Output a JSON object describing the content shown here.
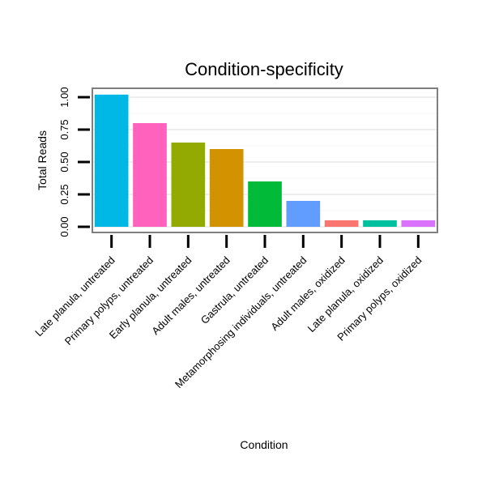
{
  "chart_data": {
    "type": "bar",
    "title": "Condition-specificity",
    "xlabel": "Condition",
    "ylabel": "Total Reads",
    "ylim": [
      0,
      1.05
    ],
    "yticks": [
      "0.00",
      "0.25",
      "0.50",
      "0.75",
      "1.00"
    ],
    "grid": true,
    "legend": "none",
    "categories": [
      "Late planula, untreated",
      "Primary polyps, untreated",
      "Early planula, untreated",
      "Adult males, untreated",
      "Gastrula, untreated",
      "Metamorphosing individuals, untreated",
      "Adult males, oxidized",
      "Late planula, oxidized",
      "Primary polyps, oxidized"
    ],
    "values": [
      1.02,
      0.8,
      0.65,
      0.6,
      0.35,
      0.2,
      0.05,
      0.05,
      0.05
    ],
    "colors": [
      "#00B8E5",
      "#FF62BC",
      "#93AA00",
      "#D39200",
      "#00BA38",
      "#619CFF",
      "#F8766D",
      "#00C19F",
      "#DB72FB"
    ]
  }
}
